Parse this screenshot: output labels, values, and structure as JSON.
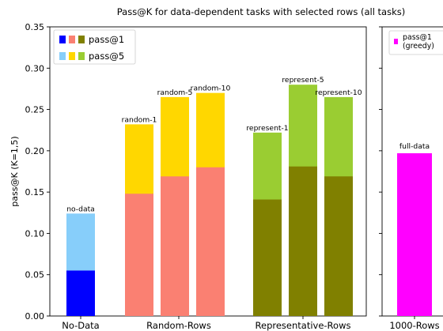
{
  "chart_data": {
    "type": "bar",
    "title": "Pass@K for data-dependent tasks with selected rows (all tasks)",
    "ylabel": "pass@K (K=1,5)",
    "ylim": [
      0,
      0.35
    ],
    "yticks": [
      "0.00",
      "0.05",
      "0.10",
      "0.15",
      "0.20",
      "0.25",
      "0.30",
      "0.35"
    ],
    "groups": [
      "No-Data",
      "Random-Rows",
      "Representative-Rows",
      "1000-Rows"
    ],
    "bars": [
      {
        "group": 0,
        "label": "no-data",
        "pass1": 0.055,
        "pass5": 0.124,
        "color1": "#0000ff",
        "color5": "#87cefa"
      },
      {
        "group": 1,
        "label": "random-1",
        "pass1": 0.148,
        "pass5": 0.232,
        "color1": "#fa8072",
        "color5": "#ffd700"
      },
      {
        "group": 1,
        "label": "random-5",
        "pass1": 0.169,
        "pass5": 0.265,
        "color1": "#fa8072",
        "color5": "#ffd700"
      },
      {
        "group": 1,
        "label": "random-10",
        "pass1": 0.18,
        "pass5": 0.27,
        "color1": "#fa8072",
        "color5": "#ffd700"
      },
      {
        "group": 2,
        "label": "represent-1",
        "pass1": 0.141,
        "pass5": 0.222,
        "color1": "#808000",
        "color5": "#9acd32"
      },
      {
        "group": 2,
        "label": "represent-5",
        "pass1": 0.181,
        "pass5": 0.28,
        "color1": "#808000",
        "color5": "#9acd32"
      },
      {
        "group": 2,
        "label": "represent-10",
        "pass1": 0.169,
        "pass5": 0.265,
        "color1": "#808000",
        "color5": "#9acd32"
      }
    ],
    "right_panel": {
      "group": "1000-Rows",
      "bar": {
        "label": "full-data",
        "value": 0.197,
        "color": "#ff00ff"
      },
      "legend": {
        "line1": "pass@1",
        "line2": "(greedy)",
        "color": "#ff00ff"
      }
    },
    "legend": [
      {
        "label": "pass@1",
        "colors": [
          "#0000ff",
          "#fa8072",
          "#808000"
        ]
      },
      {
        "label": "pass@5",
        "colors": [
          "#87cefa",
          "#ffd700",
          "#9acd32"
        ]
      }
    ]
  }
}
